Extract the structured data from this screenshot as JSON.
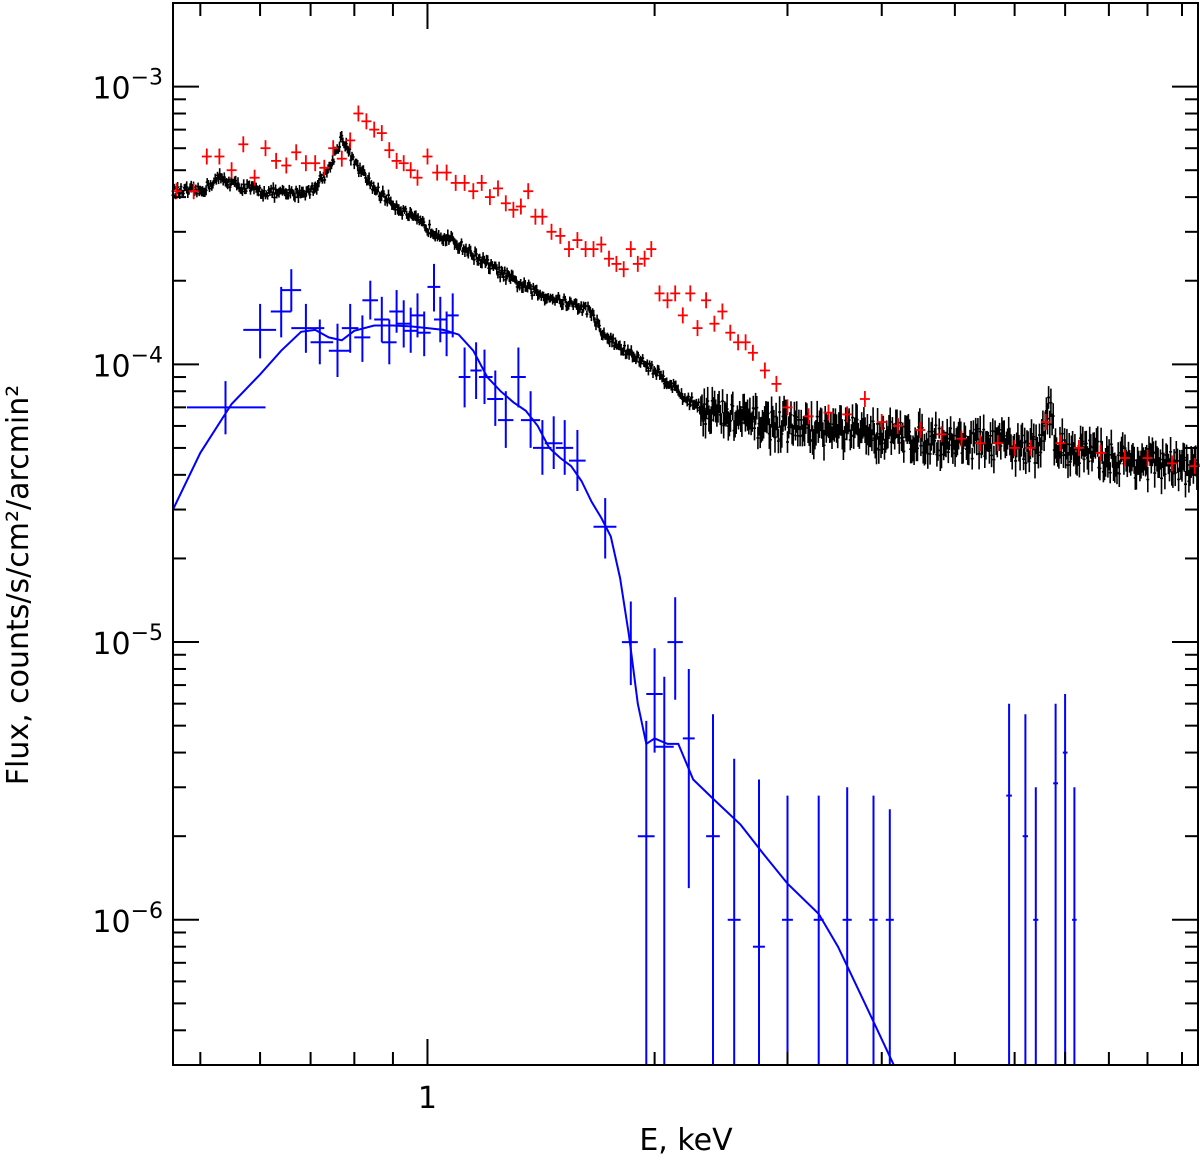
{
  "chart_data": {
    "type": "scatter",
    "title": "",
    "xlabel": "E, keV",
    "ylabel": "Flux, counts/s/cm²/arcmin²",
    "xscale": "log",
    "yscale": "log",
    "xlim": [
      0.46,
      10.5
    ],
    "ylim": [
      3e-07,
      0.002
    ],
    "x_major_ticks": [
      {
        "value": 1,
        "label": "1"
      }
    ],
    "x_minor_ticks": [
      0.5,
      0.6,
      0.7,
      0.8,
      0.9,
      2,
      3,
      4,
      5,
      6,
      7,
      8,
      9,
      10
    ],
    "y_major_ticks": [
      {
        "value": 0.001,
        "base": "10",
        "exp": "−3"
      },
      {
        "value": 0.0001,
        "base": "10",
        "exp": "−4"
      },
      {
        "value": 1e-05,
        "base": "10",
        "exp": "−5"
      },
      {
        "value": 1e-06,
        "base": "10",
        "exp": "−6"
      }
    ],
    "colors": {
      "black": "#000000",
      "red": "#ff0000",
      "blue": "#0000ff"
    },
    "series": [
      {
        "color": "#000000",
        "style": "dense-errorbars",
        "points": [
          [
            0.46,
            0.00042
          ],
          [
            0.5,
            0.00042
          ],
          [
            0.53,
            0.00047
          ],
          [
            0.56,
            0.00044
          ],
          [
            0.6,
            0.00042
          ],
          [
            0.65,
            0.00041
          ],
          [
            0.7,
            0.00042
          ],
          [
            0.74,
            0.0005
          ],
          [
            0.77,
            0.00066
          ],
          [
            0.8,
            0.00053
          ],
          [
            0.85,
            0.00043
          ],
          [
            0.9,
            0.00038
          ],
          [
            0.95,
            0.00034
          ],
          [
            1.0,
            0.00031
          ],
          [
            1.1,
            0.00027
          ],
          [
            1.2,
            0.00023
          ],
          [
            1.3,
            0.0002
          ],
          [
            1.4,
            0.00018
          ],
          [
            1.5,
            0.00017
          ],
          [
            1.6,
            0.00016
          ],
          [
            1.65,
            0.000155
          ],
          [
            1.7,
            0.00013
          ],
          [
            1.8,
            0.000115
          ],
          [
            1.9,
            0.000105
          ],
          [
            2.0,
            9.5e-05
          ],
          [
            2.1,
            8.5e-05
          ],
          [
            2.2,
            7.5e-05
          ],
          [
            2.4,
            6.7e-05
          ],
          [
            2.6,
            6.3e-05
          ],
          [
            3.0,
            6e-05
          ],
          [
            4.0,
            5.6e-05
          ],
          [
            5.0,
            5.3e-05
          ],
          [
            6.0,
            5.1e-05
          ],
          [
            6.5,
            5e-05
          ],
          [
            6.65,
            7.5e-05
          ],
          [
            6.8,
            5.1e-05
          ],
          [
            7.5,
            4.8e-05
          ],
          [
            8.5,
            4.5e-05
          ],
          [
            10.5,
            4.2e-05
          ]
        ]
      },
      {
        "color": "#ff0000",
        "style": "errorbars",
        "points": [
          [
            0.465,
            0.00042
          ],
          [
            0.49,
            0.00042
          ],
          [
            0.51,
            0.00056
          ],
          [
            0.53,
            0.00056
          ],
          [
            0.55,
            0.0005
          ],
          [
            0.57,
            0.00062
          ],
          [
            0.59,
            0.00047
          ],
          [
            0.61,
            0.0006
          ],
          [
            0.63,
            0.00054
          ],
          [
            0.65,
            0.00052
          ],
          [
            0.67,
            0.00058
          ],
          [
            0.69,
            0.00053
          ],
          [
            0.71,
            0.00053
          ],
          [
            0.73,
            0.00051
          ],
          [
            0.75,
            0.0006
          ],
          [
            0.77,
            0.00055
          ],
          [
            0.79,
            0.00064
          ],
          [
            0.81,
            0.0008
          ],
          [
            0.83,
            0.00075
          ],
          [
            0.85,
            0.0007
          ],
          [
            0.87,
            0.00068
          ],
          [
            0.89,
            0.00059
          ],
          [
            0.91,
            0.00054
          ],
          [
            0.93,
            0.00053
          ],
          [
            0.95,
            0.0005
          ],
          [
            0.97,
            0.00047
          ],
          [
            1.0,
            0.00056
          ],
          [
            1.03,
            0.00049
          ],
          [
            1.06,
            0.00049
          ],
          [
            1.09,
            0.00045
          ],
          [
            1.12,
            0.00045
          ],
          [
            1.15,
            0.00042
          ],
          [
            1.18,
            0.00045
          ],
          [
            1.21,
            0.0004
          ],
          [
            1.24,
            0.00043
          ],
          [
            1.27,
            0.00038
          ],
          [
            1.3,
            0.00036
          ],
          [
            1.33,
            0.00037
          ],
          [
            1.36,
            0.00042
          ],
          [
            1.39,
            0.00034
          ],
          [
            1.42,
            0.00034
          ],
          [
            1.46,
            0.0003
          ],
          [
            1.5,
            0.00029
          ],
          [
            1.54,
            0.00026
          ],
          [
            1.58,
            0.00028
          ],
          [
            1.62,
            0.00026
          ],
          [
            1.66,
            0.00026
          ],
          [
            1.7,
            0.00027
          ],
          [
            1.74,
            0.00024
          ],
          [
            1.78,
            0.00023
          ],
          [
            1.82,
            0.00022
          ],
          [
            1.86,
            0.00026
          ],
          [
            1.9,
            0.00023
          ],
          [
            1.94,
            0.00024
          ],
          [
            1.98,
            0.00026
          ],
          [
            2.03,
            0.00018
          ],
          [
            2.08,
            0.00017
          ],
          [
            2.13,
            0.00018
          ],
          [
            2.18,
            0.00015
          ],
          [
            2.23,
            0.00018
          ],
          [
            2.28,
            0.000135
          ],
          [
            2.34,
            0.00017
          ],
          [
            2.4,
            0.00014
          ],
          [
            2.46,
            0.000155
          ],
          [
            2.52,
            0.00013
          ],
          [
            2.58,
            0.00012
          ],
          [
            2.64,
            0.00012
          ],
          [
            2.7,
            0.00011
          ],
          [
            2.8,
            9.5e-05
          ],
          [
            2.9,
            8.5e-05
          ],
          [
            3.0,
            7e-05
          ],
          [
            3.2,
            6.5e-05
          ],
          [
            3.4,
            6.7e-05
          ],
          [
            3.6,
            6.6e-05
          ],
          [
            3.8,
            7.5e-05
          ],
          [
            4.0,
            6.2e-05
          ],
          [
            4.2,
            6e-05
          ],
          [
            4.5,
            5.8e-05
          ],
          [
            4.8,
            5.6e-05
          ],
          [
            5.1,
            5.4e-05
          ],
          [
            5.4,
            5.2e-05
          ],
          [
            5.7,
            5.2e-05
          ],
          [
            6.0,
            5e-05
          ],
          [
            6.3,
            5e-05
          ],
          [
            6.6,
            6.2e-05
          ],
          [
            6.9,
            5.2e-05
          ],
          [
            7.3,
            5e-05
          ],
          [
            7.8,
            4.8e-05
          ],
          [
            8.4,
            4.6e-05
          ],
          [
            9.0,
            4.6e-05
          ],
          [
            9.7,
            4.4e-05
          ],
          [
            10.4,
            4.3e-05
          ]
        ]
      },
      {
        "color": "#0000ff",
        "style": "errorbars",
        "points": [
          [
            0.54,
            7e-05,
            0.48,
            0.61,
            5.6e-05,
            8.7e-05
          ],
          [
            0.6,
            0.000133,
            0.57,
            0.63,
            0.000105,
            0.000165
          ],
          [
            0.64,
            0.000155,
            0.62,
            0.66,
            0.000125,
            0.00019
          ],
          [
            0.66,
            0.000185,
            0.64,
            0.68,
            0.000155,
            0.00022
          ],
          [
            0.69,
            0.000135,
            0.66,
            0.73,
            0.00011,
            0.000165
          ],
          [
            0.72,
            0.00012,
            0.7,
            0.75,
            0.0001,
            0.000145
          ],
          [
            0.76,
            0.000112,
            0.74,
            0.79,
            9e-05,
            0.00014
          ],
          [
            0.79,
            0.000135,
            0.77,
            0.81,
            0.00011,
            0.000165
          ],
          [
            0.82,
            0.000125,
            0.8,
            0.84,
            0.000102,
            0.00015
          ],
          [
            0.84,
            0.00017,
            0.82,
            0.86,
            0.000145,
            0.0002
          ],
          [
            0.87,
            0.000145,
            0.85,
            0.89,
            0.00012,
            0.000175
          ],
          [
            0.89,
            0.00012,
            0.87,
            0.91,
            0.0001,
            0.000145
          ],
          [
            0.91,
            0.000155,
            0.89,
            0.93,
            0.00013,
            0.000185
          ],
          [
            0.93,
            0.00014,
            0.91,
            0.95,
            0.000115,
            0.00017
          ],
          [
            0.95,
            0.000132,
            0.93,
            0.97,
            0.00011,
            0.00016
          ],
          [
            0.97,
            0.00015,
            0.95,
            0.99,
            0.000125,
            0.00018
          ],
          [
            0.99,
            0.00013,
            0.97,
            1.01,
            0.000107,
            0.000155
          ],
          [
            1.02,
            0.00019,
            1.0,
            1.04,
            0.000155,
            0.00023
          ],
          [
            1.04,
            0.000145,
            1.02,
            1.06,
            0.00012,
            0.000175
          ],
          [
            1.06,
            0.00013,
            1.04,
            1.08,
            0.000107,
            0.000155
          ],
          [
            1.08,
            0.00015,
            1.06,
            1.1,
            0.000125,
            0.00018
          ],
          [
            1.12,
            9e-05,
            1.1,
            1.14,
            7e-05,
            0.000115
          ],
          [
            1.16,
            9.5e-05,
            1.14,
            1.18,
            7.5e-05,
            0.00012
          ],
          [
            1.19,
            9e-05,
            1.17,
            1.22,
            7.2e-05,
            0.000113
          ],
          [
            1.23,
            7.5e-05,
            1.2,
            1.26,
            6e-05,
            9.5e-05
          ],
          [
            1.27,
            6.3e-05,
            1.24,
            1.3,
            5e-05,
            8e-05
          ],
          [
            1.32,
            9e-05,
            1.29,
            1.35,
            7e-05,
            0.000115
          ],
          [
            1.37,
            6.3e-05,
            1.33,
            1.41,
            5e-05,
            8e-05
          ],
          [
            1.42,
            5e-05,
            1.38,
            1.46,
            4e-05,
            6.3e-05
          ],
          [
            1.47,
            5.2e-05,
            1.43,
            1.51,
            4.2e-05,
            6.5e-05
          ],
          [
            1.52,
            5e-05,
            1.48,
            1.56,
            4e-05,
            6.3e-05
          ],
          [
            1.58,
            4.5e-05,
            1.54,
            1.62,
            3.5e-05,
            5.8e-05
          ],
          [
            1.72,
            2.6e-05,
            1.66,
            1.78,
            2e-05,
            3.3e-05
          ],
          [
            1.86,
            1e-05,
            1.81,
            1.9,
            7e-06,
            1.4e-05
          ],
          [
            1.95,
            2e-06,
            1.9,
            2.0,
            3e-07,
            5.2e-06
          ],
          [
            2.0,
            6.5e-06,
            1.95,
            2.05,
            4e-06,
            9.5e-06
          ],
          [
            2.06,
            4.2e-06,
            2.0,
            2.12,
            3e-07,
            7.5e-06
          ],
          [
            2.13,
            1e-05,
            2.08,
            2.18,
            6.2e-06,
            1.45e-05
          ],
          [
            2.22,
            4.5e-06,
            2.18,
            2.26,
            1.3e-06,
            8e-06
          ],
          [
            2.39,
            2e-06,
            2.34,
            2.44,
            3e-07,
            5.5e-06
          ],
          [
            2.55,
            1e-06,
            2.5,
            2.6,
            3e-07,
            3.8e-06
          ],
          [
            2.75,
            8e-07,
            2.7,
            2.8,
            3e-07,
            3.2e-06
          ],
          [
            3.0,
            1e-06,
            2.95,
            3.05,
            3e-07,
            2.8e-06
          ],
          [
            3.3,
            1e-06,
            3.25,
            3.35,
            3e-07,
            2.8e-06
          ],
          [
            3.6,
            1e-06,
            3.55,
            3.65,
            3e-07,
            3e-06
          ],
          [
            3.9,
            1e-06,
            3.85,
            3.95,
            3e-07,
            2.8e-06
          ],
          [
            4.1,
            1e-06,
            4.05,
            4.15,
            3e-07,
            2.5e-06
          ],
          [
            5.9,
            2.8e-06,
            5.85,
            5.95,
            3e-07,
            6e-06
          ],
          [
            6.2,
            2e-06,
            6.15,
            6.25,
            3e-07,
            5.5e-06
          ],
          [
            6.4,
            1e-06,
            6.35,
            6.45,
            3e-07,
            3e-06
          ],
          [
            6.8,
            3.1e-06,
            6.75,
            6.85,
            3e-07,
            6e-06
          ],
          [
            7.0,
            4e-06,
            6.95,
            7.05,
            3e-07,
            6.5e-06
          ],
          [
            7.2,
            1e-06,
            7.15,
            7.25,
            3e-07,
            3e-06
          ]
        ]
      },
      {
        "color": "#0000ff",
        "style": "line",
        "points": [
          [
            0.46,
            3e-05
          ],
          [
            0.5,
            4.8e-05
          ],
          [
            0.55,
            7.2e-05
          ],
          [
            0.6,
            9.2e-05
          ],
          [
            0.64,
            0.000112
          ],
          [
            0.68,
            0.000131
          ],
          [
            0.71,
            0.000133
          ],
          [
            0.74,
            0.000125
          ],
          [
            0.77,
            0.000122
          ],
          [
            0.8,
            0.000132
          ],
          [
            0.85,
            0.000138
          ],
          [
            0.9,
            0.000138
          ],
          [
            0.95,
            0.000137
          ],
          [
            1.0,
            0.000135
          ],
          [
            1.05,
            0.000133
          ],
          [
            1.1,
            0.000128
          ],
          [
            1.15,
            0.000112
          ],
          [
            1.2,
            9e-05
          ],
          [
            1.25,
            8e-05
          ],
          [
            1.3,
            7.3e-05
          ],
          [
            1.35,
            6.8e-05
          ],
          [
            1.4,
            6e-05
          ],
          [
            1.45,
            5e-05
          ],
          [
            1.5,
            4.6e-05
          ],
          [
            1.55,
            4.3e-05
          ],
          [
            1.6,
            3.8e-05
          ],
          [
            1.65,
            3.2e-05
          ],
          [
            1.7,
            2.8e-05
          ],
          [
            1.75,
            2.4e-05
          ],
          [
            1.8,
            1.7e-05
          ],
          [
            1.85,
            1.05e-05
          ],
          [
            1.9,
            6e-06
          ],
          [
            1.95,
            4.3e-06
          ],
          [
            2.0,
            4.5e-06
          ],
          [
            2.08,
            4.3e-06
          ],
          [
            2.15,
            4.3e-06
          ],
          [
            2.25,
            3.2e-06
          ],
          [
            2.4,
            2.7e-06
          ],
          [
            2.6,
            2.2e-06
          ],
          [
            2.8,
            1.7e-06
          ],
          [
            3.0,
            1.35e-06
          ],
          [
            3.3,
            1.05e-06
          ],
          [
            3.5,
            8e-07
          ],
          [
            3.8,
            5e-07
          ],
          [
            4.15,
            3e-07
          ]
        ]
      }
    ]
  }
}
